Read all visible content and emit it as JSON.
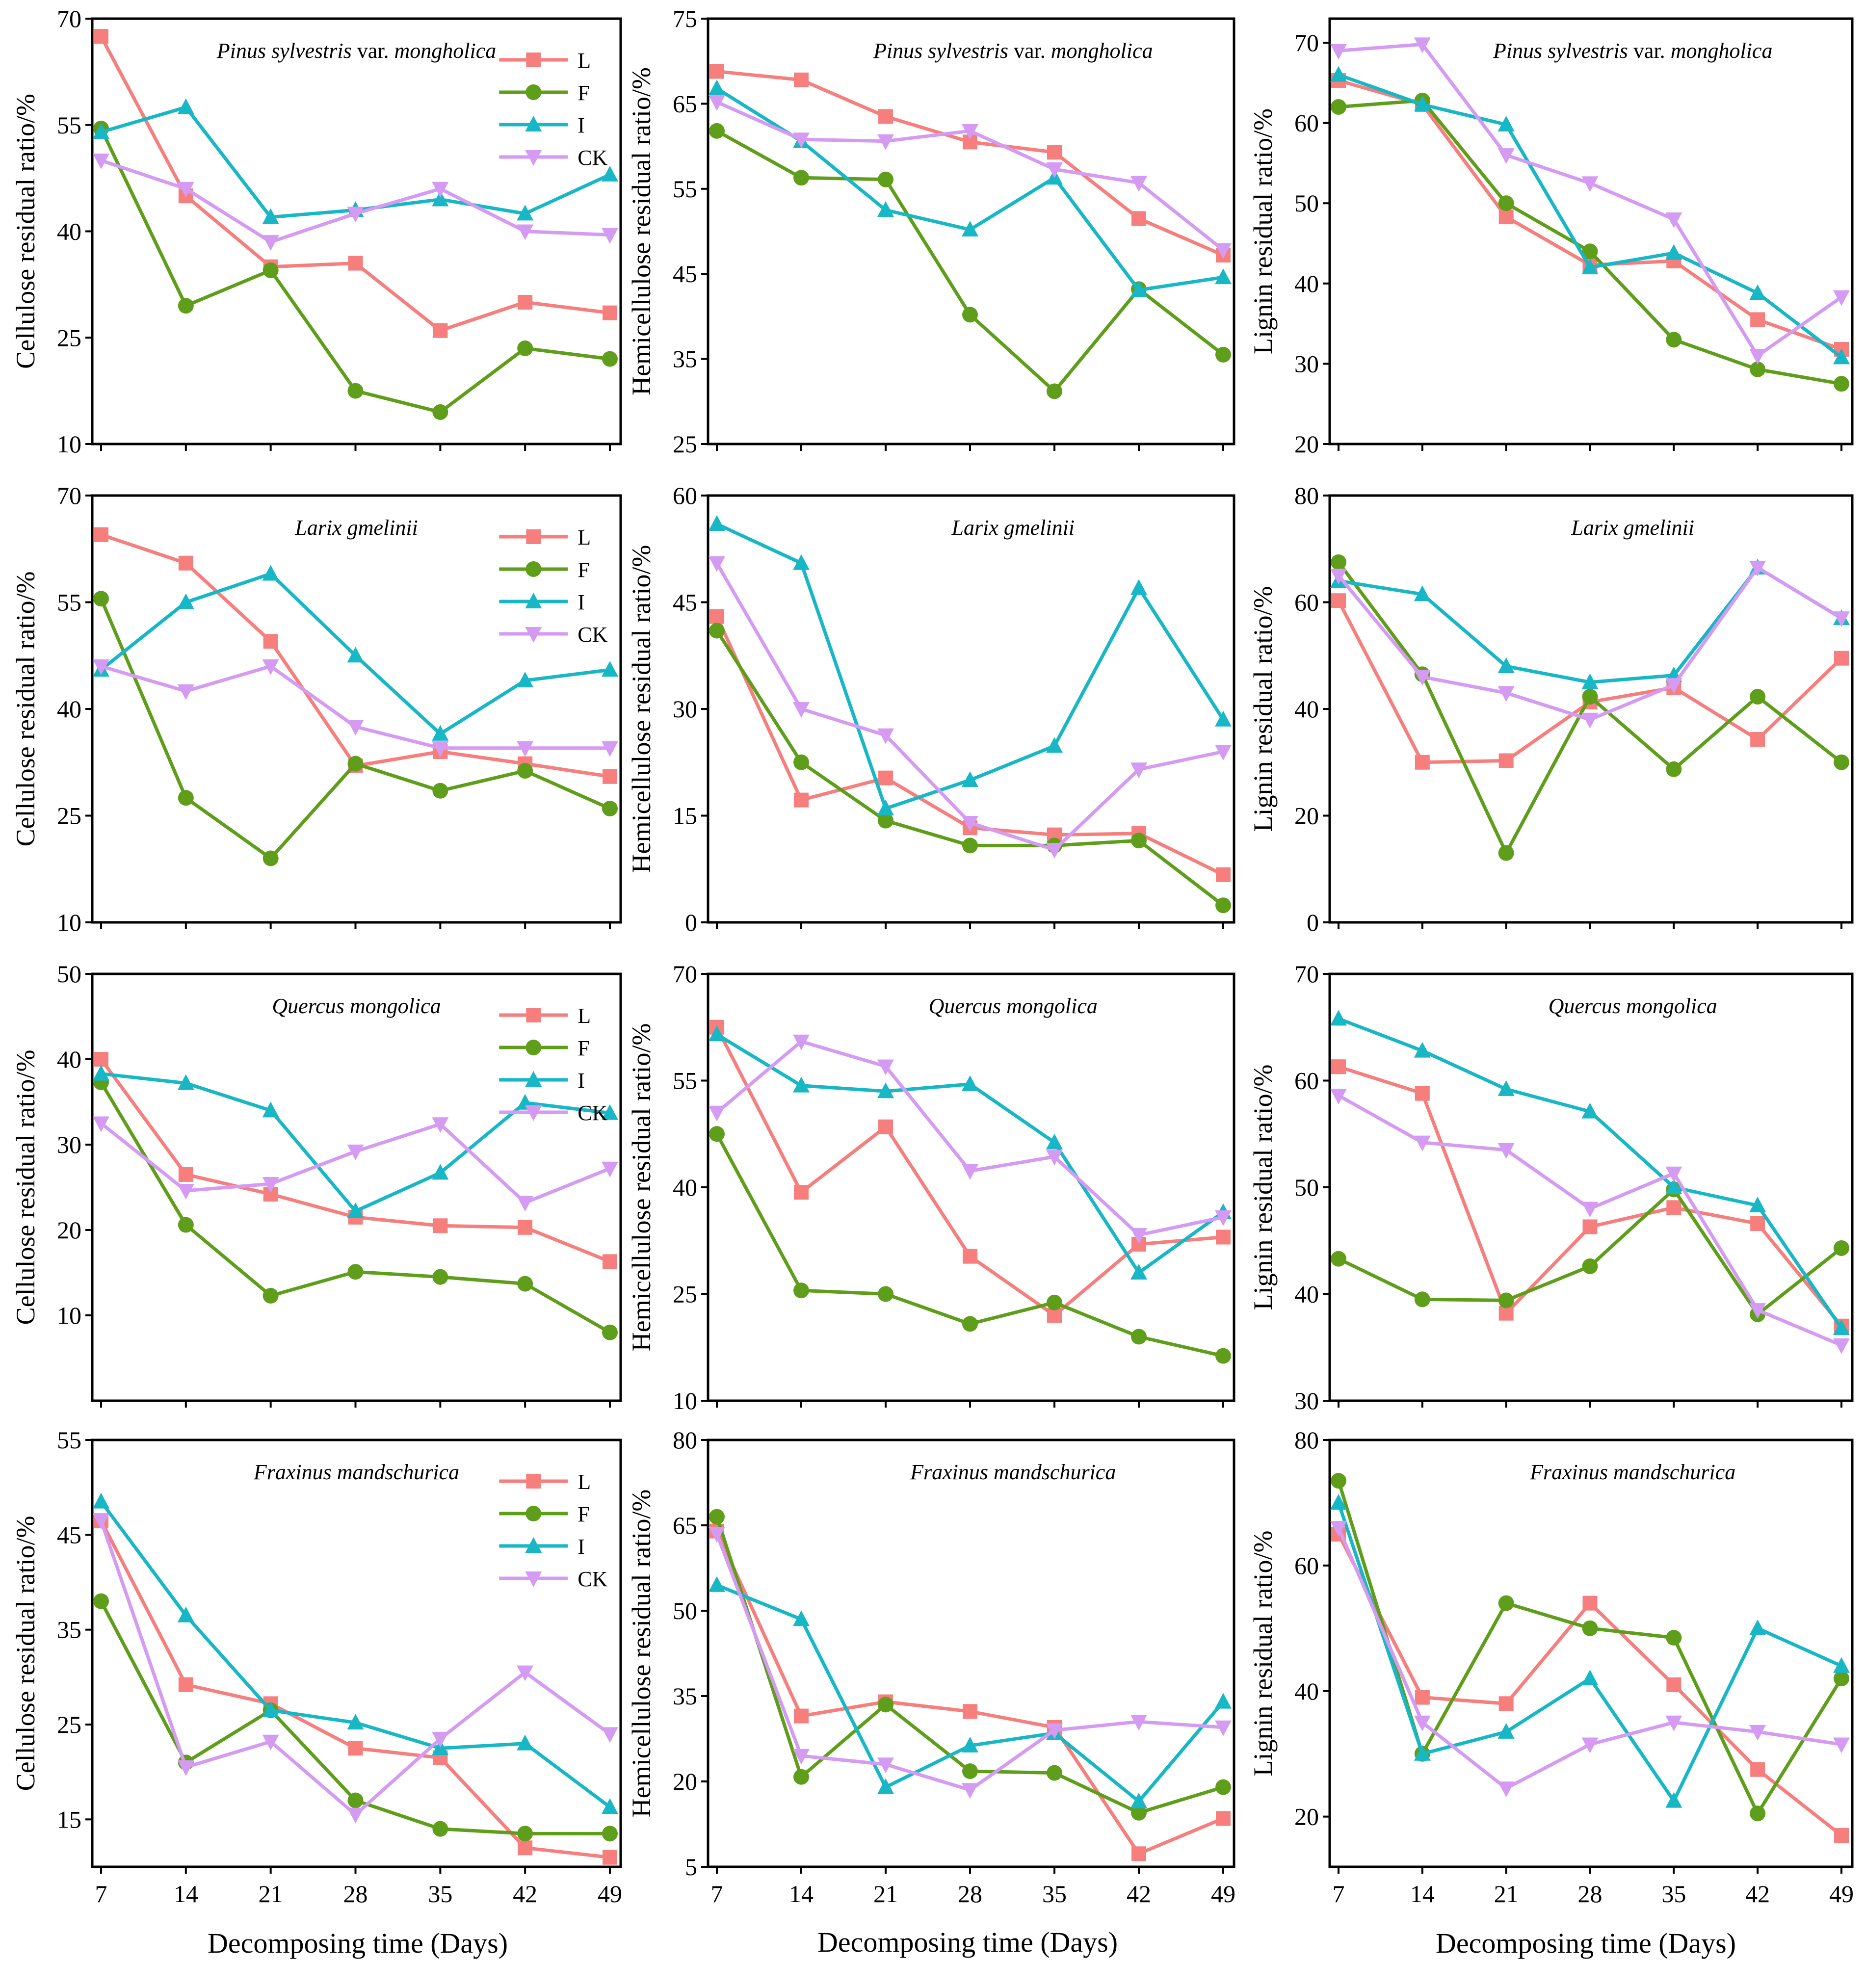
{
  "figure": {
    "xlabel": "Decomposing time (Days)",
    "series_names": [
      "L",
      "F",
      "I",
      "CK"
    ],
    "colors": {
      "L": "#f67e7d",
      "F": "#5e9e1b",
      "I": "#17b7c6",
      "CK": "#d59bf2"
    },
    "markers": {
      "L": "square",
      "F": "circle",
      "I": "triangle-up",
      "CK": "triangle-down"
    }
  },
  "chart_data": [
    {
      "type": "line",
      "title": "Pinus sylvestris var. mongholica",
      "title_italic": "Pinus sylvestris",
      "title_rest": " var. ",
      "title_italic2": "mongholica",
      "ylabel": "Cellulose residual ratio/%",
      "ylim": [
        10,
        70
      ],
      "yticks": [
        10,
        25,
        40,
        55,
        70
      ],
      "x": [
        7,
        14,
        21,
        28,
        35,
        42,
        49
      ],
      "legend": true,
      "series": [
        {
          "name": "L",
          "values": [
            67.5,
            45,
            35,
            35.5,
            26,
            30,
            28.5
          ]
        },
        {
          "name": "F",
          "values": [
            54.5,
            29.5,
            34.5,
            17.5,
            14.5,
            23.5,
            22
          ]
        },
        {
          "name": "I",
          "values": [
            54,
            57.5,
            42,
            43,
            44.5,
            42.5,
            48
          ]
        },
        {
          "name": "CK",
          "values": [
            50,
            46,
            38.5,
            42.5,
            46,
            40,
            39.5
          ]
        }
      ]
    },
    {
      "type": "line",
      "title": "Pinus sylvestris var. mongholica",
      "title_italic": "Pinus sylvestris",
      "title_rest": " var. ",
      "title_italic2": "mongholica",
      "ylabel": "Hemicellulose residual ratio/%",
      "ylim": [
        25,
        75
      ],
      "yticks": [
        25,
        35,
        45,
        55,
        65,
        75
      ],
      "x": [
        7,
        14,
        21,
        28,
        35,
        42,
        49
      ],
      "legend": false,
      "series": [
        {
          "name": "L",
          "values": [
            68.8,
            67.8,
            63.5,
            60.5,
            59.3,
            51.5,
            47.2
          ]
        },
        {
          "name": "F",
          "values": [
            61.8,
            56.3,
            56.1,
            40.2,
            31.2,
            43.2,
            35.5
          ]
        },
        {
          "name": "I",
          "values": [
            66.8,
            60.6,
            52.5,
            50.2,
            56.3,
            43.1,
            44.6
          ]
        },
        {
          "name": "CK",
          "values": [
            65.2,
            60.8,
            60.6,
            61.8,
            57.3,
            55.7,
            47.8
          ]
        }
      ]
    },
    {
      "type": "line",
      "title": "Pinus sylvestris var. mongholica",
      "title_italic": "Pinus sylvestris",
      "title_rest": " var. ",
      "title_italic2": "mongholica",
      "ylabel": "Lignin residual ratio/%",
      "ylim": [
        20,
        73
      ],
      "yticks": [
        20,
        30,
        40,
        50,
        60,
        70
      ],
      "x": [
        7,
        14,
        21,
        28,
        35,
        42,
        49
      ],
      "legend": false,
      "series": [
        {
          "name": "L",
          "values": [
            65.3,
            62.3,
            48.3,
            42.3,
            42.8,
            35.5,
            31.8
          ]
        },
        {
          "name": "F",
          "values": [
            62,
            62.8,
            50,
            44,
            33,
            29.3,
            27.5
          ]
        },
        {
          "name": "I",
          "values": [
            66,
            62.3,
            59.8,
            42,
            43.8,
            38.8,
            30.8
          ]
        },
        {
          "name": "CK",
          "values": [
            69,
            69.8,
            56,
            52.5,
            48,
            31,
            38.3
          ]
        }
      ]
    },
    {
      "type": "line",
      "title": "Larix gmelinii",
      "title_italic": "Larix gmelinii",
      "title_rest": "",
      "title_italic2": "",
      "ylabel": "Cellulose residual ratio/%",
      "ylim": [
        10,
        70
      ],
      "yticks": [
        10,
        25,
        40,
        55,
        70
      ],
      "x": [
        7,
        14,
        21,
        28,
        35,
        42,
        49
      ],
      "legend": true,
      "series": [
        {
          "name": "L",
          "values": [
            64.5,
            60.5,
            49.5,
            32,
            34,
            32.3,
            30.5
          ]
        },
        {
          "name": "F",
          "values": [
            55.5,
            27.5,
            19,
            32.3,
            28.5,
            31.3,
            26
          ]
        },
        {
          "name": "I",
          "values": [
            45.5,
            55,
            59,
            47.5,
            36.5,
            44,
            45.5
          ]
        },
        {
          "name": "CK",
          "values": [
            46,
            42.5,
            46,
            37.5,
            34.5,
            34.5,
            34.5
          ]
        }
      ]
    },
    {
      "type": "line",
      "title": "Larix gmelinii",
      "title_italic": "Larix gmelinii",
      "title_rest": "",
      "title_italic2": "",
      "ylabel": "Hemicellulose residual ratio/%",
      "ylim": [
        0,
        60
      ],
      "yticks": [
        0,
        15,
        30,
        45,
        60
      ],
      "x": [
        7,
        14,
        21,
        28,
        35,
        42,
        49
      ],
      "legend": false,
      "series": [
        {
          "name": "L",
          "values": [
            43,
            17.2,
            20.3,
            13.3,
            12.3,
            12.5,
            6.7
          ]
        },
        {
          "name": "F",
          "values": [
            41,
            22.5,
            14.3,
            10.8,
            10.8,
            11.5,
            2.4
          ]
        },
        {
          "name": "I",
          "values": [
            56,
            50.5,
            16,
            20,
            24.8,
            47,
            28.5
          ]
        },
        {
          "name": "CK",
          "values": [
            50.5,
            30,
            26.3,
            14,
            10.2,
            21.5,
            24
          ]
        }
      ]
    },
    {
      "type": "line",
      "title": "Larix gmelinii",
      "title_italic": "Larix gmelinii",
      "title_rest": "",
      "title_italic2": "",
      "ylabel": "Lignin residual ratio/%",
      "ylim": [
        0,
        80
      ],
      "yticks": [
        0,
        20,
        40,
        60,
        80
      ],
      "x": [
        7,
        14,
        21,
        28,
        35,
        42,
        49
      ],
      "legend": false,
      "series": [
        {
          "name": "L",
          "values": [
            60.3,
            30,
            30.3,
            41.3,
            44,
            34.3,
            49.5
          ]
        },
        {
          "name": "F",
          "values": [
            67.5,
            46.5,
            13,
            42.3,
            28.7,
            42.3,
            30
          ]
        },
        {
          "name": "I",
          "values": [
            64,
            61.5,
            48,
            45,
            46.3,
            66.5,
            57
          ]
        },
        {
          "name": "CK",
          "values": [
            65,
            46,
            43,
            38,
            44.5,
            66.5,
            57
          ]
        }
      ]
    },
    {
      "type": "line",
      "title": "Quercus mongolica",
      "title_italic": "Quercus mongolica",
      "title_rest": "",
      "title_italic2": "",
      "ylabel": "Cellulose residual ratio/%",
      "ylim": [
        0,
        50
      ],
      "yticks": [
        10,
        20,
        30,
        40,
        50
      ],
      "x": [
        7,
        14,
        21,
        28,
        35,
        42,
        49
      ],
      "legend": true,
      "series": [
        {
          "name": "L",
          "values": [
            40,
            26.5,
            24.2,
            21.5,
            20.5,
            20.3,
            16.3
          ]
        },
        {
          "name": "F",
          "values": [
            37.3,
            20.6,
            12.3,
            15.1,
            14.5,
            13.7,
            8
          ]
        },
        {
          "name": "I",
          "values": [
            38.3,
            37.2,
            34,
            22.2,
            26.7,
            34.9,
            33.7
          ]
        },
        {
          "name": "CK",
          "values": [
            32.5,
            24.6,
            25.4,
            29.2,
            32.4,
            23.2,
            27.2
          ]
        }
      ]
    },
    {
      "type": "line",
      "title": "Quercus mongolica",
      "title_italic": "Quercus mongolica",
      "title_rest": "",
      "title_italic2": "",
      "ylabel": "Hemicellulose residual ratio/%",
      "ylim": [
        10,
        70
      ],
      "yticks": [
        10,
        25,
        40,
        55,
        70
      ],
      "x": [
        7,
        14,
        21,
        28,
        35,
        42,
        49
      ],
      "legend": false,
      "series": [
        {
          "name": "L",
          "values": [
            62.5,
            39.3,
            48.5,
            30.3,
            22,
            32,
            33
          ]
        },
        {
          "name": "F",
          "values": [
            47.5,
            25.5,
            25,
            20.8,
            23.8,
            19,
            16.3
          ]
        },
        {
          "name": "I",
          "values": [
            61.5,
            54.3,
            53.5,
            54.5,
            46.3,
            28,
            36.5
          ]
        },
        {
          "name": "CK",
          "values": [
            50.5,
            60.5,
            57,
            42.3,
            44.3,
            33.3,
            35.8
          ]
        }
      ]
    },
    {
      "type": "line",
      "title": "Quercus mongolica",
      "title_italic": "Quercus mongolica",
      "title_rest": "",
      "title_italic2": "",
      "ylabel": "Lignin residual ratio/%",
      "ylim": [
        30,
        70
      ],
      "yticks": [
        30,
        40,
        50,
        60,
        70
      ],
      "x": [
        7,
        14,
        21,
        28,
        35,
        42,
        49
      ],
      "legend": false,
      "series": [
        {
          "name": "L",
          "values": [
            61.3,
            58.8,
            38.2,
            46.3,
            48.1,
            46.6,
            37
          ]
        },
        {
          "name": "F",
          "values": [
            43.3,
            39.5,
            39.4,
            42.6,
            49.8,
            38.1,
            44.3
          ]
        },
        {
          "name": "I",
          "values": [
            65.8,
            62.8,
            59.2,
            57.1,
            50,
            48.3,
            36.8
          ]
        },
        {
          "name": "CK",
          "values": [
            58.6,
            54.2,
            53.5,
            48,
            51.3,
            38.5,
            35.2
          ]
        }
      ]
    },
    {
      "type": "line",
      "title": "Fraxinus mandschurica",
      "title_italic": "Fraxinus mandschurica",
      "title_rest": "",
      "title_italic2": "",
      "ylabel": "Cellulose residual ratio/%",
      "ylim": [
        10,
        55
      ],
      "yticks": [
        15,
        25,
        35,
        45,
        55
      ],
      "x": [
        7,
        14,
        21,
        28,
        35,
        42,
        49
      ],
      "legend": true,
      "series": [
        {
          "name": "L",
          "values": [
            46.5,
            29.2,
            27.2,
            22.5,
            21.5,
            12,
            11
          ]
        },
        {
          "name": "F",
          "values": [
            38,
            21,
            26.5,
            17,
            14,
            13.5,
            13.5
          ]
        },
        {
          "name": "I",
          "values": [
            48.5,
            36.5,
            26.5,
            25.2,
            22.5,
            23,
            16.3
          ]
        },
        {
          "name": "CK",
          "values": [
            46.5,
            20.5,
            23.2,
            15.5,
            23.5,
            30.5,
            24
          ]
        }
      ]
    },
    {
      "type": "line",
      "title": "Fraxinus mandschurica",
      "title_italic": "Fraxinus mandschurica",
      "title_rest": "",
      "title_italic2": "",
      "ylabel": "Hemicellulose residual ratio/%",
      "ylim": [
        5,
        80
      ],
      "yticks": [
        5,
        20,
        35,
        50,
        65,
        80
      ],
      "x": [
        7,
        14,
        21,
        28,
        35,
        42,
        49
      ],
      "legend": false,
      "series": [
        {
          "name": "L",
          "values": [
            64,
            31.5,
            34,
            32.3,
            29.5,
            7.3,
            13.5
          ]
        },
        {
          "name": "F",
          "values": [
            66.5,
            20.8,
            33.5,
            21.8,
            21.5,
            14.5,
            19
          ]
        },
        {
          "name": "I",
          "values": [
            54.5,
            48.5,
            19,
            26.3,
            28.5,
            16.5,
            34
          ]
        },
        {
          "name": "CK",
          "values": [
            63.5,
            24.5,
            23,
            18.5,
            29,
            30.5,
            29.5
          ]
        }
      ]
    },
    {
      "type": "line",
      "title": "Fraxinus mandschurica",
      "title_italic": "Fraxinus mandschurica",
      "title_rest": "",
      "title_italic2": "",
      "ylabel": "Lignin residual ratio/%",
      "ylim": [
        12,
        80
      ],
      "yticks": [
        20,
        40,
        60,
        80
      ],
      "x": [
        7,
        14,
        21,
        28,
        35,
        42,
        49
      ],
      "legend": false,
      "series": [
        {
          "name": "L",
          "values": [
            65,
            39,
            38,
            54,
            41,
            27.5,
            17
          ]
        },
        {
          "name": "F",
          "values": [
            73.5,
            30,
            54,
            50,
            48.5,
            20.5,
            42
          ]
        },
        {
          "name": "I",
          "values": [
            70,
            30,
            33.5,
            42,
            22.5,
            50,
            44
          ]
        },
        {
          "name": "CK",
          "values": [
            66,
            35,
            24.5,
            31.5,
            35,
            33.5,
            31.5
          ]
        }
      ]
    }
  ]
}
